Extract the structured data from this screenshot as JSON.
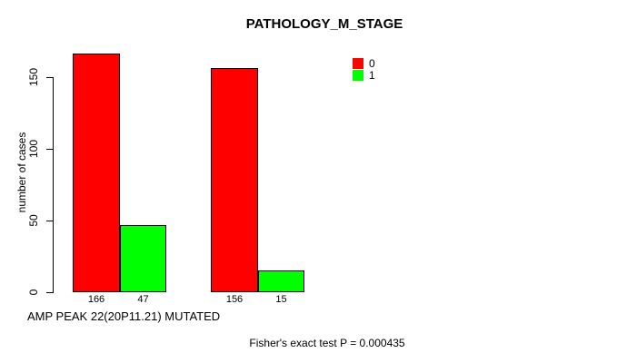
{
  "title": "PATHOLOGY_M_STAGE",
  "chart_data": {
    "type": "bar",
    "title": "PATHOLOGY_M_STAGE",
    "categories": [
      "",
      ""
    ],
    "series": [
      {
        "name": "0",
        "color": "#FF0000",
        "values": [
          166,
          156
        ]
      },
      {
        "name": "1",
        "color": "#00FF00",
        "values": [
          47,
          15
        ]
      }
    ],
    "bar_value_labels": true,
    "ylabel": "number of cases",
    "xlabel": "AMP PEAK 22(20P11.21) MUTATED",
    "yticks": [
      0,
      50,
      100,
      150
    ],
    "ylim": [
      0,
      166
    ],
    "grid": false,
    "legend_position": "top-right"
  },
  "annotations": {
    "fisher_note": "Fisher's exact test P = 0.000435"
  },
  "colors": {
    "series_0": "#FF0000",
    "series_1": "#00FF00",
    "axis": "#000000",
    "background": "#FFFFFF"
  }
}
